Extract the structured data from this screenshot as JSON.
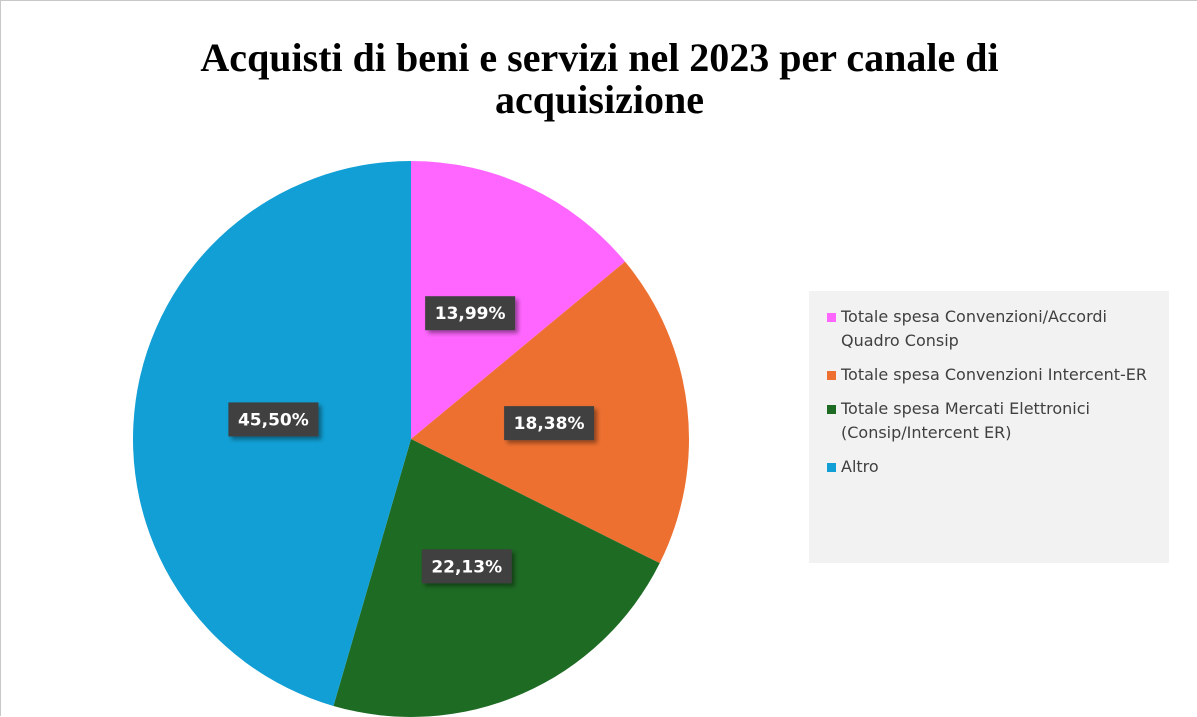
{
  "chart_data": {
    "type": "pie",
    "title": "Acquisti di beni e servizi nel 2023 per canale di acquisizione",
    "categories": [
      "Totale spesa Convenzioni/Accordi Quadro Consip",
      "Totale spesa Convenzioni Intercent-ER",
      "Totale spesa Mercati Elettronici (Consip/Intercent ER)",
      "Altro"
    ],
    "values": [
      13.99,
      18.38,
      22.13,
      45.5
    ],
    "value_labels": [
      "13,99%",
      "18,38%",
      "22,13%",
      "45,50%"
    ],
    "colors": [
      "#ff66ff",
      "#ed7031",
      "#1e6b24",
      "#119fd5"
    ],
    "legend": "right"
  }
}
